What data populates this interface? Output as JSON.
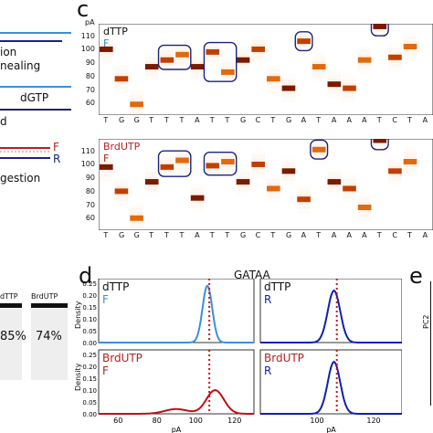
{
  "panels": {
    "c_letter": "c",
    "d_letter": "d",
    "e_letter": "e"
  },
  "left_panel": {
    "labels": [
      "ion",
      "nealing",
      "dGTP",
      "d",
      "F",
      "R",
      "gestion"
    ],
    "gel_headers": [
      "dTTP",
      "BrdUTP"
    ],
    "gel_values": [
      "85%",
      "74%"
    ]
  },
  "panel_c": {
    "y_unit": "pA",
    "y_ticks": [
      "110",
      "100",
      "90",
      "80",
      "70",
      "60"
    ],
    "sequence": [
      "T",
      "G",
      "G",
      "T",
      "T",
      "T",
      "A",
      "T",
      "T",
      "G",
      "C",
      "T",
      "G",
      "A",
      "T",
      "A",
      "A",
      "A",
      "T",
      "C",
      "T",
      "A"
    ],
    "top": {
      "series": "dTTP",
      "strand": "F"
    },
    "bottom": {
      "series": "BrdUTP",
      "strand": "F"
    },
    "colors": {
      "dTTP_strand": "#2b8fd6",
      "BrdUTP": "#b22222",
      "box": "#1a237e"
    }
  },
  "panel_d": {
    "title": "GATAA",
    "x_ticks": [
      "60",
      "80",
      "100",
      "120"
    ],
    "x_ticks_right": [
      "100",
      "120"
    ],
    "y_ticks": [
      "0.25",
      "0.20",
      "0.15",
      "0.10",
      "0.05",
      "0.00"
    ],
    "xlabel": "pA",
    "ylabel": "Density",
    "cells": [
      {
        "series": "dTTP",
        "strand": "F"
      },
      {
        "series": "dTTP",
        "strand": "R"
      },
      {
        "series": "BrdUTP",
        "strand": "F"
      },
      {
        "series": "BrdUTP",
        "strand": "R"
      }
    ]
  },
  "panel_e": {
    "ylabel": "PC2"
  }
}
